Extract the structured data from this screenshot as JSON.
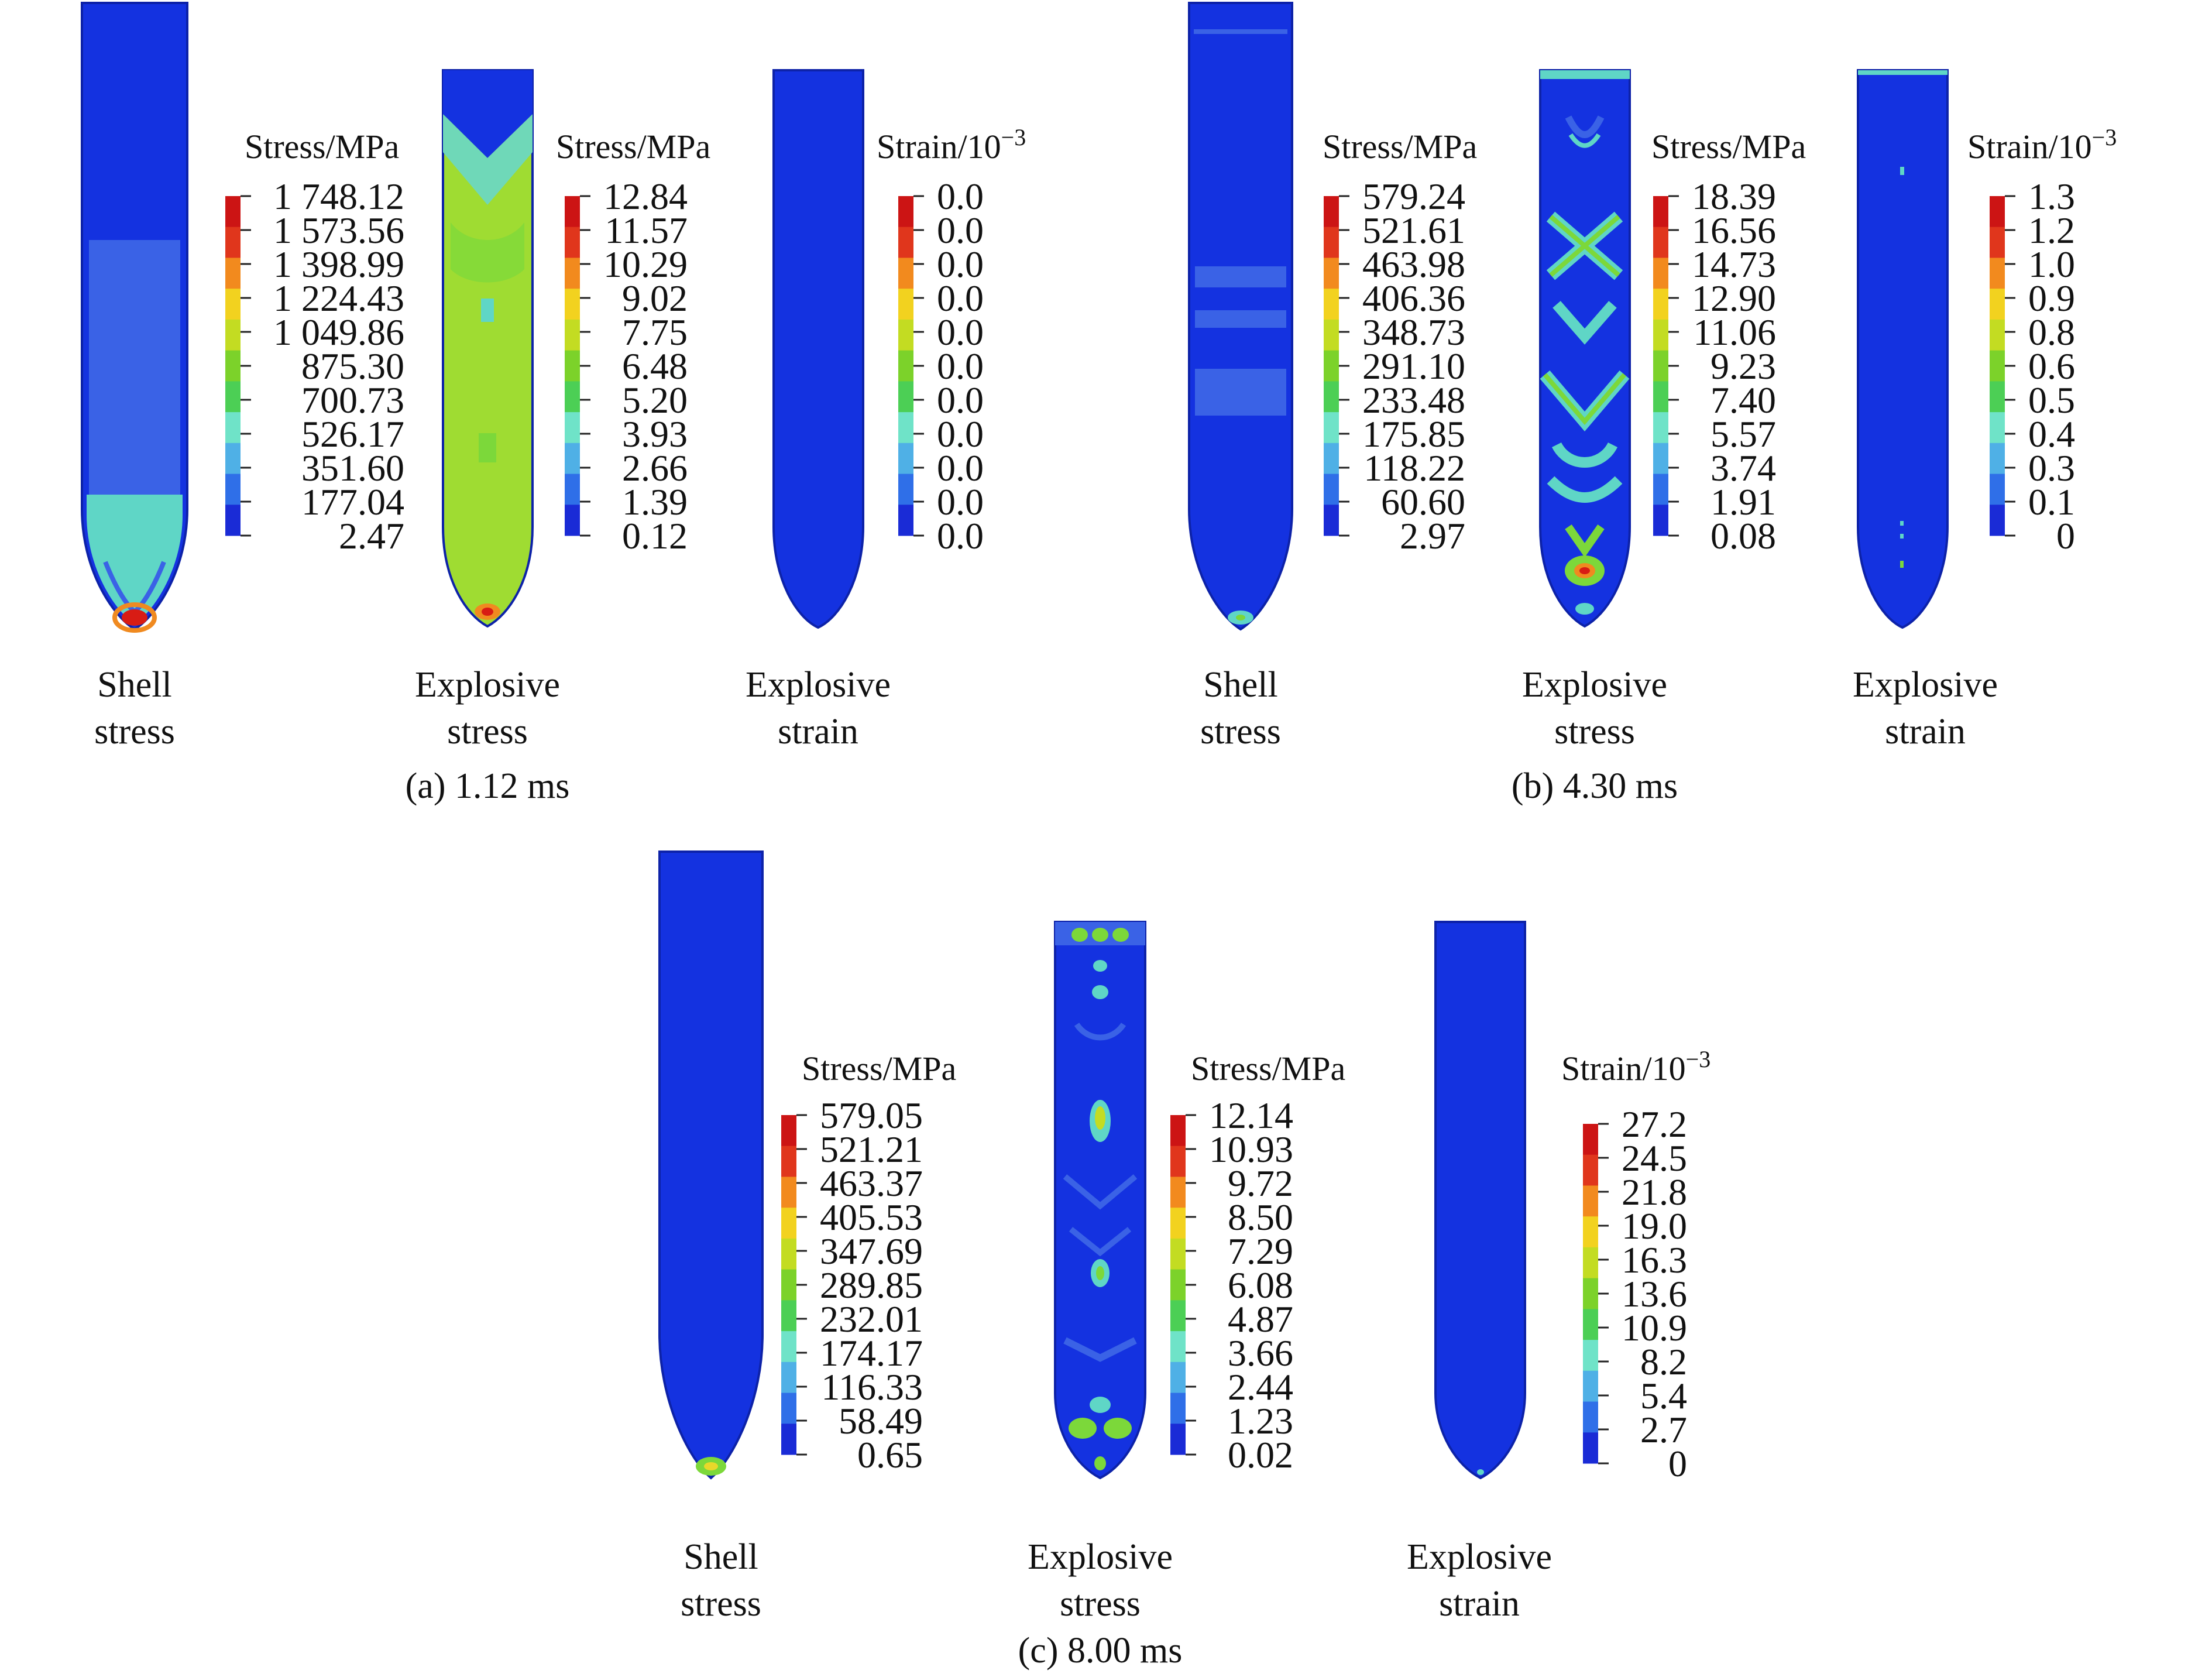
{
  "scale_colors": [
    "#1a2bd6",
    "#2f6fe8",
    "#4fb0e6",
    "#6fe3c8",
    "#4ccf55",
    "#7cd22a",
    "#c3dc22",
    "#f2d21f",
    "#f28a1e",
    "#e0361c",
    "#cc1414"
  ],
  "field_colors": {
    "base": "#1432e0",
    "light": "#3a62e6",
    "cyan": "#5fd6c6",
    "green": "#7cd83a",
    "lime": "#9fdc32",
    "yellow": "#e8d82a",
    "orange": "#f08a20",
    "red": "#d81c14",
    "outline": "#0d22a8"
  },
  "panels": [
    {
      "id": "a",
      "caption": "(a) 1.12 ms",
      "items": [
        {
          "name": "shell-stress",
          "label_line1": "Shell",
          "label_line2": "stress",
          "unit": "Stress/MPa",
          "unit_sup": "",
          "ticks": [
            "1 748.12",
            "1 573.56",
            "1 398.99",
            "1 224.43",
            "1 049.86",
            "875.30",
            "700.73",
            "526.17",
            "351.60",
            "177.04",
            "2.47"
          ]
        },
        {
          "name": "explosive-stress",
          "label_line1": "Explosive",
          "label_line2": "stress",
          "unit": "Stress/MPa",
          "unit_sup": "",
          "ticks": [
            "12.84",
            "11.57",
            "10.29",
            "9.02",
            "7.75",
            "6.48",
            "5.20",
            "3.93",
            "2.66",
            "1.39",
            "0.12"
          ]
        },
        {
          "name": "explosive-strain",
          "label_line1": "Explosive",
          "label_line2": "strain",
          "unit": "Strain/10",
          "unit_sup": "−3",
          "ticks": [
            "0.0",
            "0.0",
            "0.0",
            "0.0",
            "0.0",
            "0.0",
            "0.0",
            "0.0",
            "0.0",
            "0.0",
            "0.0"
          ]
        }
      ]
    },
    {
      "id": "b",
      "caption": "(b) 4.30 ms",
      "items": [
        {
          "name": "shell-stress",
          "label_line1": "Shell",
          "label_line2": "stress",
          "unit": "Stress/MPa",
          "unit_sup": "",
          "ticks": [
            "579.24",
            "521.61",
            "463.98",
            "406.36",
            "348.73",
            "291.10",
            "233.48",
            "175.85",
            "118.22",
            "60.60",
            "2.97"
          ]
        },
        {
          "name": "explosive-stress",
          "label_line1": "Explosive",
          "label_line2": "stress",
          "unit": "Stress/MPa",
          "unit_sup": "",
          "ticks": [
            "18.39",
            "16.56",
            "14.73",
            "12.90",
            "11.06",
            "9.23",
            "7.40",
            "5.57",
            "3.74",
            "1.91",
            "0.08"
          ]
        },
        {
          "name": "explosive-strain",
          "label_line1": "Explosive",
          "label_line2": "strain",
          "unit": "Strain/10",
          "unit_sup": "−3",
          "ticks": [
            "1.3",
            "1.2",
            "1.0",
            "0.9",
            "0.8",
            "0.6",
            "0.5",
            "0.4",
            "0.3",
            "0.1",
            "0"
          ]
        }
      ]
    },
    {
      "id": "c",
      "caption": "(c) 8.00 ms",
      "items": [
        {
          "name": "shell-stress",
          "label_line1": "Shell",
          "label_line2": "stress",
          "unit": "Stress/MPa",
          "unit_sup": "",
          "ticks": [
            "579.05",
            "521.21",
            "463.37",
            "405.53",
            "347.69",
            "289.85",
            "232.01",
            "174.17",
            "116.33",
            "58.49",
            "0.65"
          ]
        },
        {
          "name": "explosive-stress",
          "label_line1": "Explosive",
          "label_line2": "stress",
          "unit": "Stress/MPa",
          "unit_sup": "",
          "ticks": [
            "12.14",
            "10.93",
            "9.72",
            "8.50",
            "7.29",
            "6.08",
            "4.87",
            "3.66",
            "2.44",
            "1.23",
            "0.02"
          ]
        },
        {
          "name": "explosive-strain",
          "label_line1": "Explosive",
          "label_line2": "strain",
          "unit": "Strain/10",
          "unit_sup": "−3",
          "ticks": [
            "27.2",
            "24.5",
            "21.8",
            "19.0",
            "16.3",
            "13.6",
            "10.9",
            "8.2",
            "5.4",
            "2.7",
            "0"
          ]
        }
      ]
    }
  ]
}
